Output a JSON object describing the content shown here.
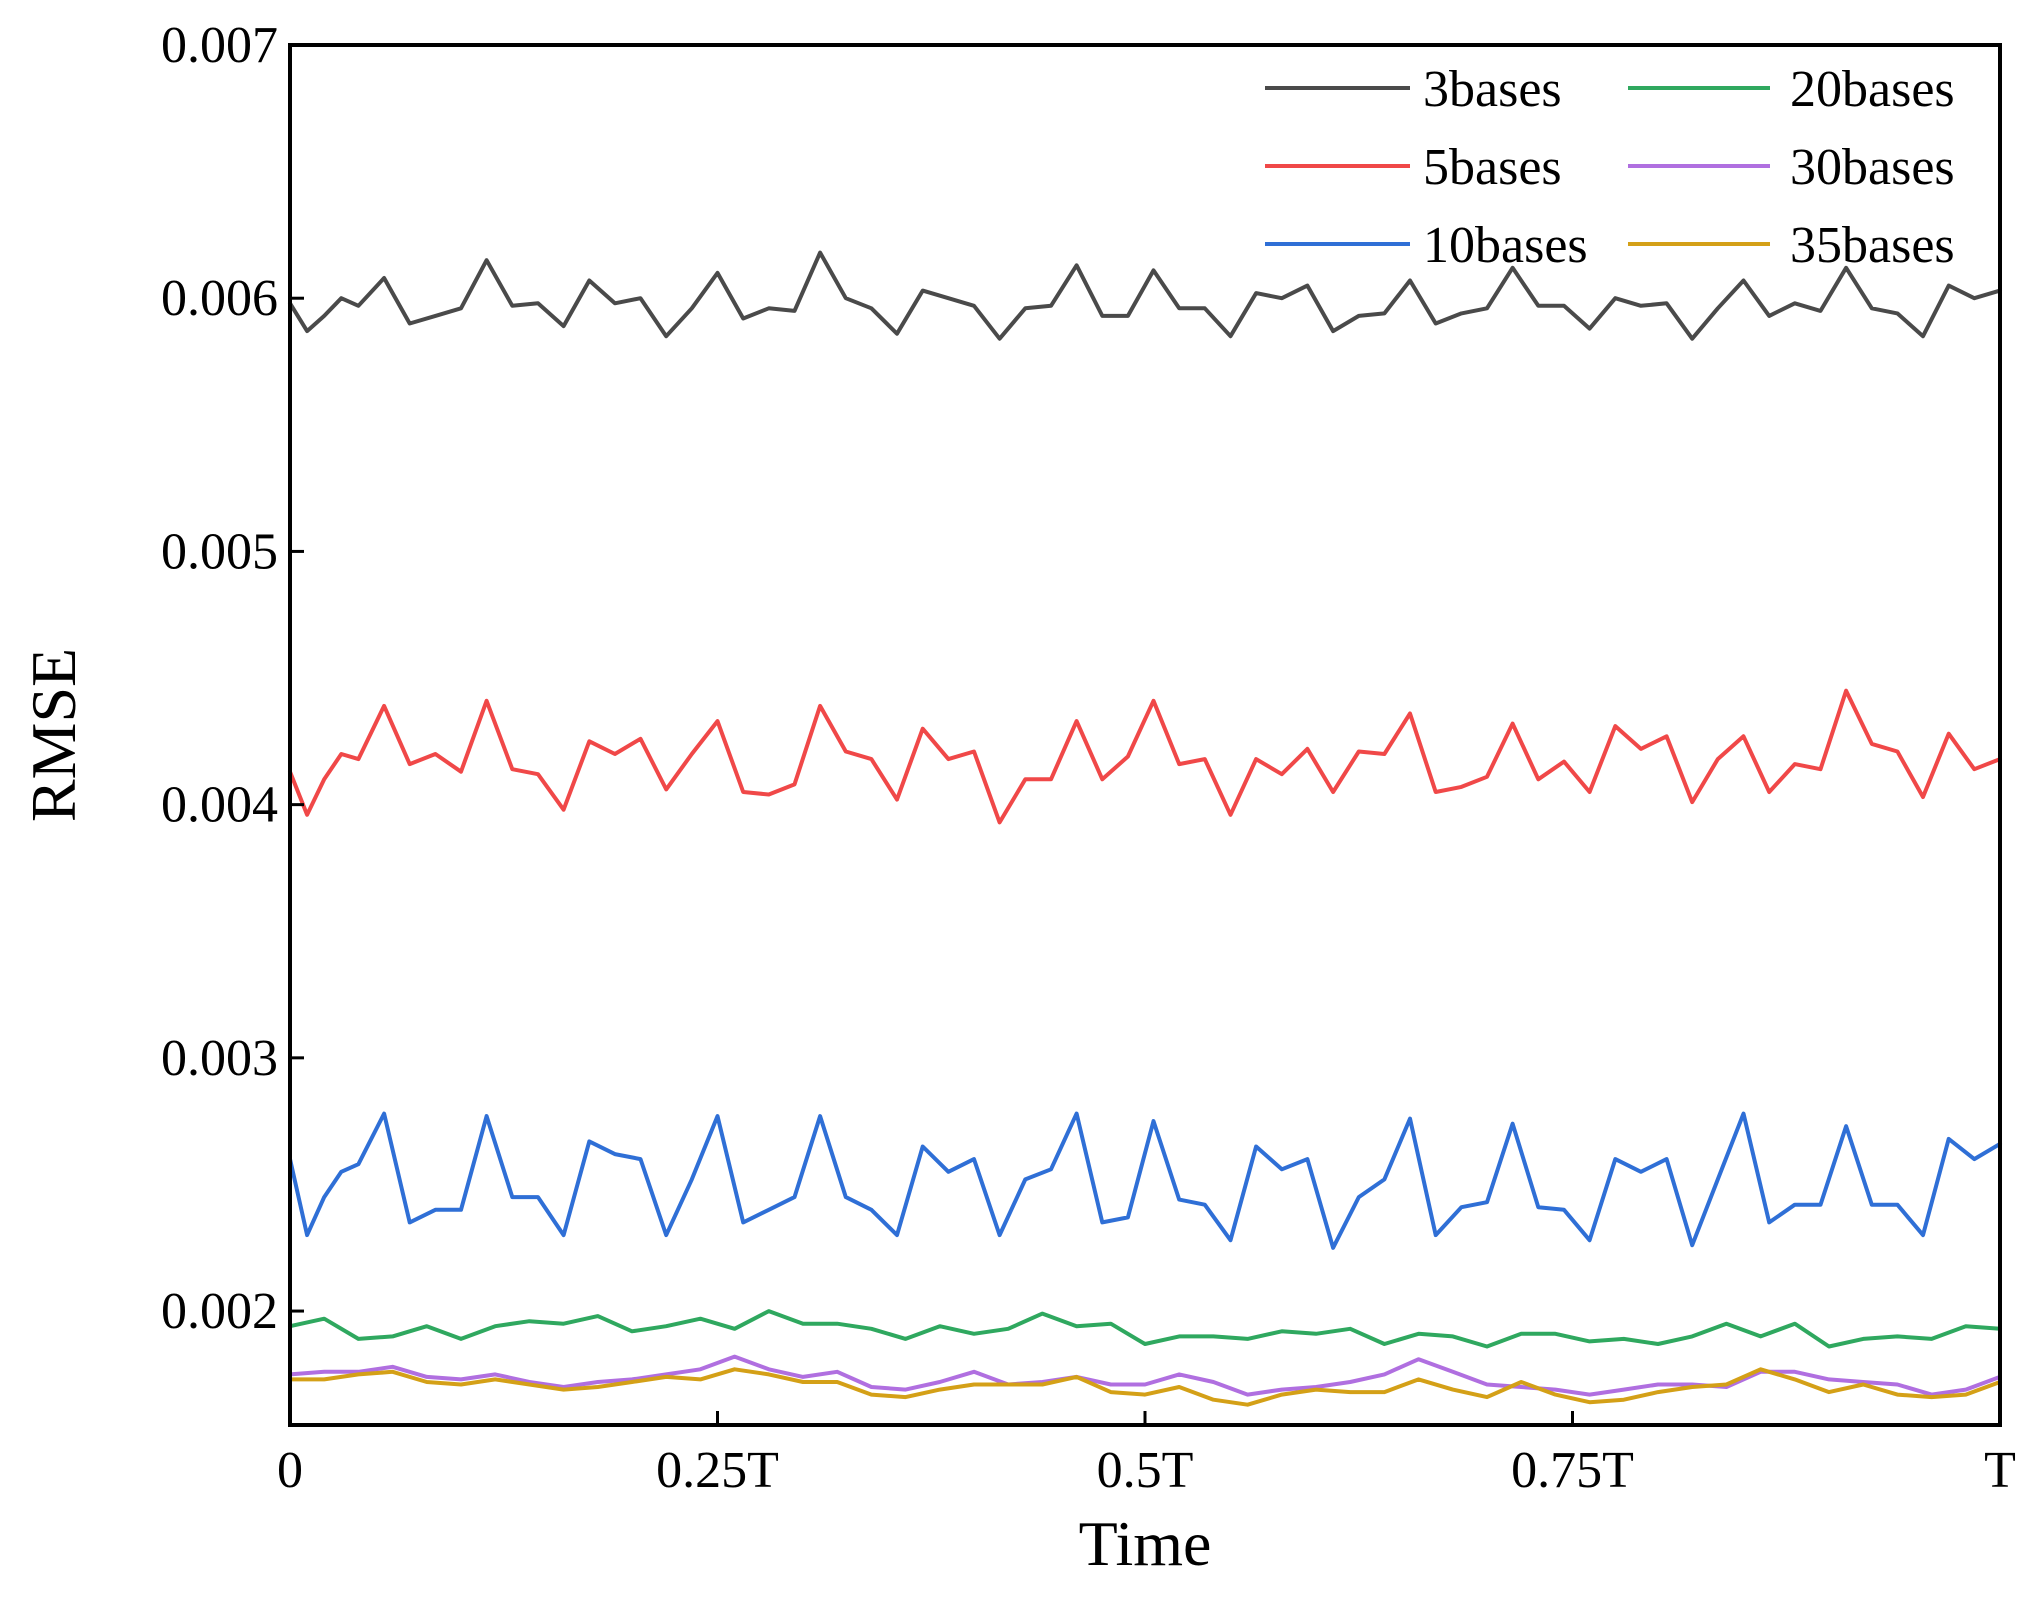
{
  "chart_data": {
    "type": "line",
    "title": "",
    "xlabel": "Time",
    "ylabel": "RMSE",
    "xlim": [
      0,
      1
    ],
    "ylim": [
      0.00155,
      0.007
    ],
    "x_ticks": [
      {
        "value": 0,
        "label": "0"
      },
      {
        "value": 0.25,
        "label": "0.25T"
      },
      {
        "value": 0.5,
        "label": "0.5T"
      },
      {
        "value": 0.75,
        "label": "0.75T"
      },
      {
        "value": 1,
        "label": "T"
      }
    ],
    "y_ticks": [
      {
        "value": 0.002,
        "label": "0.002"
      },
      {
        "value": 0.003,
        "label": "0.003"
      },
      {
        "value": 0.004,
        "label": "0.004"
      },
      {
        "value": 0.005,
        "label": "0.005"
      },
      {
        "value": 0.006,
        "label": "0.006"
      },
      {
        "value": 0.007,
        "label": "0.007"
      }
    ],
    "grid": false,
    "legend": "top-right",
    "series": [
      {
        "name": "3bases",
        "color": "#4a4a4a",
        "x": [
          0,
          0.01,
          0.02,
          0.03,
          0.04,
          0.055,
          0.07,
          0.085,
          0.1,
          0.115,
          0.13,
          0.145,
          0.16,
          0.175,
          0.19,
          0.205,
          0.22,
          0.235,
          0.25,
          0.265,
          0.28,
          0.295,
          0.31,
          0.325,
          0.34,
          0.355,
          0.37,
          0.385,
          0.4,
          0.415,
          0.43,
          0.445,
          0.46,
          0.475,
          0.49,
          0.505,
          0.52,
          0.535,
          0.55,
          0.565,
          0.58,
          0.595,
          0.61,
          0.625,
          0.64,
          0.655,
          0.67,
          0.685,
          0.7,
          0.715,
          0.73,
          0.745,
          0.76,
          0.775,
          0.79,
          0.805,
          0.82,
          0.835,
          0.85,
          0.865,
          0.88,
          0.895,
          0.91,
          0.925,
          0.94,
          0.955,
          0.97,
          0.985,
          1.0
        ],
        "y": [
          0.00598,
          0.00587,
          0.00593,
          0.006,
          0.00597,
          0.00608,
          0.0059,
          0.00593,
          0.00596,
          0.00615,
          0.00597,
          0.00598,
          0.00589,
          0.00607,
          0.00598,
          0.006,
          0.00585,
          0.00596,
          0.0061,
          0.00592,
          0.00596,
          0.00595,
          0.00618,
          0.006,
          0.00596,
          0.00586,
          0.00603,
          0.006,
          0.00597,
          0.00584,
          0.00596,
          0.00597,
          0.00613,
          0.00593,
          0.00593,
          0.00611,
          0.00596,
          0.00596,
          0.00585,
          0.00602,
          0.006,
          0.00605,
          0.00587,
          0.00593,
          0.00594,
          0.00607,
          0.0059,
          0.00594,
          0.00596,
          0.00612,
          0.00597,
          0.00597,
          0.00588,
          0.006,
          0.00597,
          0.00598,
          0.00584,
          0.00596,
          0.00607,
          0.00593,
          0.00598,
          0.00595,
          0.00612,
          0.00596,
          0.00594,
          0.00585,
          0.00605,
          0.006,
          0.00603
        ]
      },
      {
        "name": "5bases",
        "color": "#f04848",
        "x": [
          0,
          0.01,
          0.02,
          0.03,
          0.04,
          0.055,
          0.07,
          0.085,
          0.1,
          0.115,
          0.13,
          0.145,
          0.16,
          0.175,
          0.19,
          0.205,
          0.22,
          0.235,
          0.25,
          0.265,
          0.28,
          0.295,
          0.31,
          0.325,
          0.34,
          0.355,
          0.37,
          0.385,
          0.4,
          0.415,
          0.43,
          0.445,
          0.46,
          0.475,
          0.49,
          0.505,
          0.52,
          0.535,
          0.55,
          0.565,
          0.58,
          0.595,
          0.61,
          0.625,
          0.64,
          0.655,
          0.67,
          0.685,
          0.7,
          0.715,
          0.73,
          0.745,
          0.76,
          0.775,
          0.79,
          0.805,
          0.82,
          0.835,
          0.85,
          0.865,
          0.88,
          0.895,
          0.91,
          0.925,
          0.94,
          0.955,
          0.97,
          0.985,
          1.0
        ],
        "y": [
          0.00413,
          0.00396,
          0.0041,
          0.0042,
          0.00418,
          0.00439,
          0.00416,
          0.0042,
          0.00413,
          0.00441,
          0.00414,
          0.00412,
          0.00398,
          0.00425,
          0.0042,
          0.00426,
          0.00406,
          0.0042,
          0.00433,
          0.00405,
          0.00404,
          0.00408,
          0.00439,
          0.00421,
          0.00418,
          0.00402,
          0.0043,
          0.00418,
          0.00421,
          0.00393,
          0.0041,
          0.0041,
          0.00433,
          0.0041,
          0.00419,
          0.00441,
          0.00416,
          0.00418,
          0.00396,
          0.00418,
          0.00412,
          0.00422,
          0.00405,
          0.00421,
          0.0042,
          0.00436,
          0.00405,
          0.00407,
          0.00411,
          0.00432,
          0.0041,
          0.00417,
          0.00405,
          0.00431,
          0.00422,
          0.00427,
          0.00401,
          0.00418,
          0.00427,
          0.00405,
          0.00416,
          0.00414,
          0.00445,
          0.00424,
          0.00421,
          0.00403,
          0.00428,
          0.00414,
          0.00418
        ]
      },
      {
        "name": "10bases",
        "color": "#2f6fd6",
        "x": [
          0,
          0.01,
          0.02,
          0.03,
          0.04,
          0.055,
          0.07,
          0.085,
          0.1,
          0.115,
          0.13,
          0.145,
          0.16,
          0.175,
          0.19,
          0.205,
          0.22,
          0.235,
          0.25,
          0.265,
          0.28,
          0.295,
          0.31,
          0.325,
          0.34,
          0.355,
          0.37,
          0.385,
          0.4,
          0.415,
          0.43,
          0.445,
          0.46,
          0.475,
          0.49,
          0.505,
          0.52,
          0.535,
          0.55,
          0.565,
          0.58,
          0.595,
          0.61,
          0.625,
          0.64,
          0.655,
          0.67,
          0.685,
          0.7,
          0.715,
          0.73,
          0.745,
          0.76,
          0.775,
          0.79,
          0.805,
          0.82,
          0.835,
          0.85,
          0.865,
          0.88,
          0.895,
          0.91,
          0.925,
          0.94,
          0.955,
          0.97,
          0.985,
          1.0
        ],
        "y": [
          0.0026,
          0.0023,
          0.00245,
          0.00255,
          0.00258,
          0.00278,
          0.00235,
          0.0024,
          0.0024,
          0.00277,
          0.00245,
          0.00245,
          0.0023,
          0.00267,
          0.00262,
          0.0026,
          0.0023,
          0.00252,
          0.00277,
          0.00235,
          0.0024,
          0.00245,
          0.00277,
          0.00245,
          0.0024,
          0.0023,
          0.00265,
          0.00255,
          0.0026,
          0.0023,
          0.00252,
          0.00256,
          0.00278,
          0.00235,
          0.00237,
          0.00275,
          0.00244,
          0.00242,
          0.00228,
          0.00265,
          0.00256,
          0.0026,
          0.00225,
          0.00245,
          0.00252,
          0.00276,
          0.0023,
          0.00241,
          0.00243,
          0.00274,
          0.00241,
          0.0024,
          0.00228,
          0.0026,
          0.00255,
          0.0026,
          0.00226,
          0.00252,
          0.00278,
          0.00235,
          0.00242,
          0.00242,
          0.00273,
          0.00242,
          0.00242,
          0.0023,
          0.00268,
          0.0026,
          0.00266
        ]
      },
      {
        "name": "20bases",
        "color": "#2fa85f",
        "x": [
          0,
          0.02,
          0.04,
          0.06,
          0.08,
          0.1,
          0.12,
          0.14,
          0.16,
          0.18,
          0.2,
          0.22,
          0.24,
          0.26,
          0.28,
          0.3,
          0.32,
          0.34,
          0.36,
          0.38,
          0.4,
          0.42,
          0.44,
          0.46,
          0.48,
          0.5,
          0.52,
          0.54,
          0.56,
          0.58,
          0.6,
          0.62,
          0.64,
          0.66,
          0.68,
          0.7,
          0.72,
          0.74,
          0.76,
          0.78,
          0.8,
          0.82,
          0.84,
          0.86,
          0.88,
          0.9,
          0.92,
          0.94,
          0.96,
          0.98,
          1.0
        ],
        "y": [
          0.00194,
          0.00197,
          0.00189,
          0.0019,
          0.00194,
          0.00189,
          0.00194,
          0.00196,
          0.00195,
          0.00198,
          0.00192,
          0.00194,
          0.00197,
          0.00193,
          0.002,
          0.00195,
          0.00195,
          0.00193,
          0.00189,
          0.00194,
          0.00191,
          0.00193,
          0.00199,
          0.00194,
          0.00195,
          0.00187,
          0.0019,
          0.0019,
          0.00189,
          0.00192,
          0.00191,
          0.00193,
          0.00187,
          0.00191,
          0.0019,
          0.00186,
          0.00191,
          0.00191,
          0.00188,
          0.00189,
          0.00187,
          0.0019,
          0.00195,
          0.0019,
          0.00195,
          0.00186,
          0.00189,
          0.0019,
          0.00189,
          0.00194,
          0.00193
        ]
      },
      {
        "name": "30bases",
        "color": "#b06fe0",
        "x": [
          0,
          0.02,
          0.04,
          0.06,
          0.08,
          0.1,
          0.12,
          0.14,
          0.16,
          0.18,
          0.2,
          0.22,
          0.24,
          0.26,
          0.28,
          0.3,
          0.32,
          0.34,
          0.36,
          0.38,
          0.4,
          0.42,
          0.44,
          0.46,
          0.48,
          0.5,
          0.52,
          0.54,
          0.56,
          0.58,
          0.6,
          0.62,
          0.64,
          0.66,
          0.68,
          0.7,
          0.72,
          0.74,
          0.76,
          0.78,
          0.8,
          0.82,
          0.84,
          0.86,
          0.88,
          0.9,
          0.92,
          0.94,
          0.96,
          0.98,
          1.0
        ],
        "y": [
          0.00175,
          0.00176,
          0.00176,
          0.00178,
          0.00174,
          0.00173,
          0.00175,
          0.00172,
          0.0017,
          0.00172,
          0.00173,
          0.00175,
          0.00177,
          0.00182,
          0.00177,
          0.00174,
          0.00176,
          0.0017,
          0.00169,
          0.00172,
          0.00176,
          0.00171,
          0.00172,
          0.00174,
          0.00171,
          0.00171,
          0.00175,
          0.00172,
          0.00167,
          0.00169,
          0.0017,
          0.00172,
          0.00175,
          0.00181,
          0.00176,
          0.00171,
          0.0017,
          0.00169,
          0.00167,
          0.00169,
          0.00171,
          0.00171,
          0.0017,
          0.00176,
          0.00176,
          0.00173,
          0.00172,
          0.00171,
          0.00167,
          0.00169,
          0.00174
        ]
      },
      {
        "name": "35bases",
        "color": "#d4a017",
        "x": [
          0,
          0.02,
          0.04,
          0.06,
          0.08,
          0.1,
          0.12,
          0.14,
          0.16,
          0.18,
          0.2,
          0.22,
          0.24,
          0.26,
          0.28,
          0.3,
          0.32,
          0.34,
          0.36,
          0.38,
          0.4,
          0.42,
          0.44,
          0.46,
          0.48,
          0.5,
          0.52,
          0.54,
          0.56,
          0.58,
          0.6,
          0.62,
          0.64,
          0.66,
          0.68,
          0.7,
          0.72,
          0.74,
          0.76,
          0.78,
          0.8,
          0.82,
          0.84,
          0.86,
          0.88,
          0.9,
          0.92,
          0.94,
          0.96,
          0.98,
          1.0
        ],
        "y": [
          0.00173,
          0.00173,
          0.00175,
          0.00176,
          0.00172,
          0.00171,
          0.00173,
          0.00171,
          0.00169,
          0.0017,
          0.00172,
          0.00174,
          0.00173,
          0.00177,
          0.00175,
          0.00172,
          0.00172,
          0.00167,
          0.00166,
          0.00169,
          0.00171,
          0.00171,
          0.00171,
          0.00174,
          0.00168,
          0.00167,
          0.0017,
          0.00165,
          0.00163,
          0.00167,
          0.00169,
          0.00168,
          0.00168,
          0.00173,
          0.00169,
          0.00166,
          0.00172,
          0.00167,
          0.00164,
          0.00165,
          0.00168,
          0.0017,
          0.00171,
          0.00177,
          0.00173,
          0.00168,
          0.00171,
          0.00167,
          0.00166,
          0.00167,
          0.00172
        ]
      }
    ]
  }
}
